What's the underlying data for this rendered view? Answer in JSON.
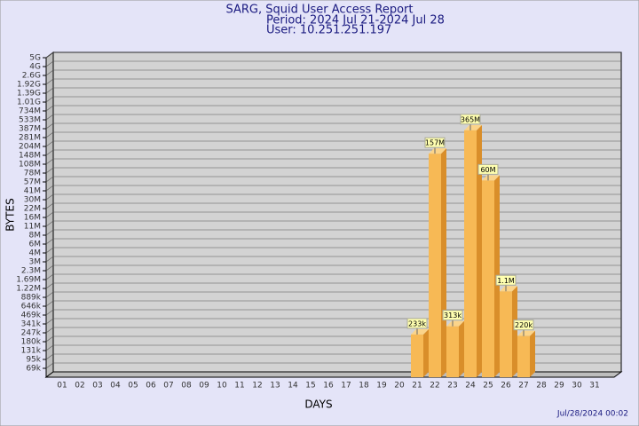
{
  "chart_data": {
    "type": "bar3d",
    "title": "SARG, Squid User Access Report",
    "subtitle": "Period: 2024 Jul 21-2024 Jul 28",
    "user": "User: 10.251.251.197",
    "x_label": "DAYS",
    "y_label": "BYTES",
    "timestamp": "Jul/28/2024 00:02",
    "categories": [
      "01",
      "02",
      "03",
      "04",
      "05",
      "06",
      "07",
      "08",
      "09",
      "10",
      "11",
      "12",
      "13",
      "14",
      "15",
      "16",
      "17",
      "18",
      "19",
      "20",
      "21",
      "22",
      "23",
      "24",
      "25",
      "26",
      "27",
      "28",
      "29",
      "30",
      "31"
    ],
    "values": [
      null,
      null,
      null,
      null,
      null,
      null,
      null,
      null,
      null,
      null,
      null,
      null,
      null,
      null,
      null,
      null,
      null,
      null,
      null,
      null,
      233000,
      157000000,
      313000,
      365000000,
      60000000,
      1100000,
      220000,
      null,
      null,
      null,
      null
    ],
    "value_labels": [
      null,
      null,
      null,
      null,
      null,
      null,
      null,
      null,
      null,
      null,
      null,
      null,
      null,
      null,
      null,
      null,
      null,
      null,
      null,
      null,
      "233k",
      "157M",
      "313k",
      "365M",
      "60M",
      "1.1M",
      "220k",
      null,
      null,
      null,
      null
    ],
    "color": "#f7b955",
    "ylim": [
      50000,
      5000000000
    ],
    "log_scale": true,
    "grid": true,
    "yticks": [
      {
        "value": 69000,
        "label": "69k"
      },
      {
        "value": 95000,
        "label": "95k"
      },
      {
        "value": 131000,
        "label": "131k"
      },
      {
        "value": 180000,
        "label": "180k"
      },
      {
        "value": 247000,
        "label": "247k"
      },
      {
        "value": 341000,
        "label": "341k"
      },
      {
        "value": 469000,
        "label": "469k"
      },
      {
        "value": 646000,
        "label": "646k"
      },
      {
        "value": 889000,
        "label": "889k"
      },
      {
        "value": 1220000,
        "label": "1.22M"
      },
      {
        "value": 1690000,
        "label": "1.69M"
      },
      {
        "value": 2300000,
        "label": "2.3M"
      },
      {
        "value": 3000000,
        "label": "3M"
      },
      {
        "value": 4000000,
        "label": "4M"
      },
      {
        "value": 6000000,
        "label": "6M"
      },
      {
        "value": 8000000,
        "label": "8M"
      },
      {
        "value": 11000000,
        "label": "11M"
      },
      {
        "value": 16000000,
        "label": "16M"
      },
      {
        "value": 22000000,
        "label": "22M"
      },
      {
        "value": 30000000,
        "label": "30M"
      },
      {
        "value": 41000000,
        "label": "41M"
      },
      {
        "value": 57000000,
        "label": "57M"
      },
      {
        "value": 78000000,
        "label": "78M"
      },
      {
        "value": 108000000,
        "label": "108M"
      },
      {
        "value": 148000000,
        "label": "148M"
      },
      {
        "value": 204000000,
        "label": "204M"
      },
      {
        "value": 281000000,
        "label": "281M"
      },
      {
        "value": 387000000,
        "label": "387M"
      },
      {
        "value": 533000000,
        "label": "533M"
      },
      {
        "value": 734000000,
        "label": "734M"
      },
      {
        "value": 1010000000,
        "label": "1.01G"
      },
      {
        "value": 1390000000,
        "label": "1.39G"
      },
      {
        "value": 1920000000,
        "label": "1.92G"
      },
      {
        "value": 2600000000,
        "label": "2.6G"
      },
      {
        "value": 4000000000,
        "label": "4G"
      },
      {
        "value": 5000000000,
        "label": "5G"
      }
    ]
  }
}
